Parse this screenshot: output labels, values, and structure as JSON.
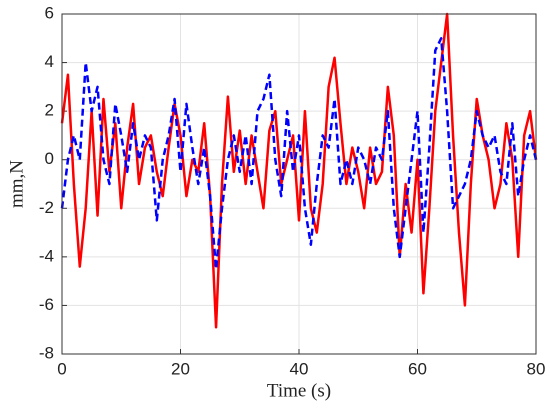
{
  "chart_data": {
    "type": "line",
    "xlabel": "Time (s)",
    "ylabel": "mm,N",
    "x": [
      0,
      1,
      2,
      3,
      4,
      5,
      6,
      7,
      8,
      9,
      10,
      11,
      12,
      13,
      14,
      15,
      16,
      17,
      18,
      19,
      20,
      21,
      22,
      23,
      24,
      25,
      26,
      27,
      28,
      29,
      30,
      31,
      32,
      33,
      34,
      35,
      36,
      37,
      38,
      39,
      40,
      41,
      42,
      43,
      44,
      45,
      46,
      47,
      48,
      49,
      50,
      51,
      52,
      53,
      54,
      55,
      56,
      57,
      58,
      59,
      60,
      61,
      62,
      63,
      64,
      65,
      66,
      67,
      68,
      69,
      70,
      71,
      72,
      73,
      74,
      75,
      76,
      77,
      78,
      79,
      80
    ],
    "series": [
      {
        "color": "#ff0000",
        "dash": false,
        "values": [
          1.5,
          3.5,
          -1,
          -4.4,
          -2,
          2,
          -2.3,
          2.5,
          -0.5,
          1.5,
          -2,
          0.5,
          2.3,
          -1,
          0.5,
          1,
          -0.5,
          -1.5,
          0.5,
          2.3,
          1,
          -1.5,
          0,
          -0.5,
          1.5,
          -1.5,
          -6.9,
          -1,
          2.6,
          -0.5,
          1.2,
          -1,
          1,
          -0.5,
          -2,
          1.2,
          2,
          -1,
          0,
          1,
          -2.5,
          2,
          -2,
          -3,
          -1,
          3,
          4.2,
          1.5,
          -1,
          0.5,
          -0.5,
          -2,
          0.5,
          -1,
          -0.5,
          3,
          1,
          -4,
          -1,
          -3,
          0,
          -5.5,
          -2,
          2,
          4,
          6,
          1,
          -3,
          -6,
          -1,
          2.5,
          1,
          0,
          -2,
          -1,
          1.5,
          0,
          -4,
          1,
          2,
          0
        ]
      },
      {
        "color": "#0000ff",
        "dash": true,
        "values": [
          -2,
          0,
          1,
          0,
          4,
          2,
          3,
          0,
          -1,
          2.3,
          1,
          -0.5,
          1.5,
          0,
          1,
          0.5,
          -2.5,
          0,
          1,
          2.5,
          -0.5,
          2.3,
          0.5,
          -1,
          0.5,
          -1.5,
          -4.5,
          -2,
          0,
          1,
          -0.5,
          1,
          -1,
          2,
          2.5,
          3.5,
          0,
          -1.5,
          2,
          -0.5,
          1,
          -2,
          -3.5,
          -1,
          1,
          0.5,
          2.5,
          -1,
          0,
          -1,
          0.5,
          0,
          -1,
          0.5,
          0,
          2,
          -2,
          -4,
          -2,
          0,
          2,
          -3,
          0.5,
          4.5,
          5,
          2,
          -2,
          -1.5,
          -1,
          0,
          2,
          1,
          0.5,
          1,
          -0.5,
          -1,
          1.5,
          -1.5,
          0,
          1,
          0
        ]
      }
    ],
    "xlim": [
      0,
      80
    ],
    "xticks": [
      0,
      20,
      40,
      60,
      80
    ],
    "ylim": [
      -8,
      6
    ],
    "yticks": [
      -8,
      -6,
      -4,
      -2,
      0,
      2,
      4,
      6
    ],
    "grid": true
  }
}
